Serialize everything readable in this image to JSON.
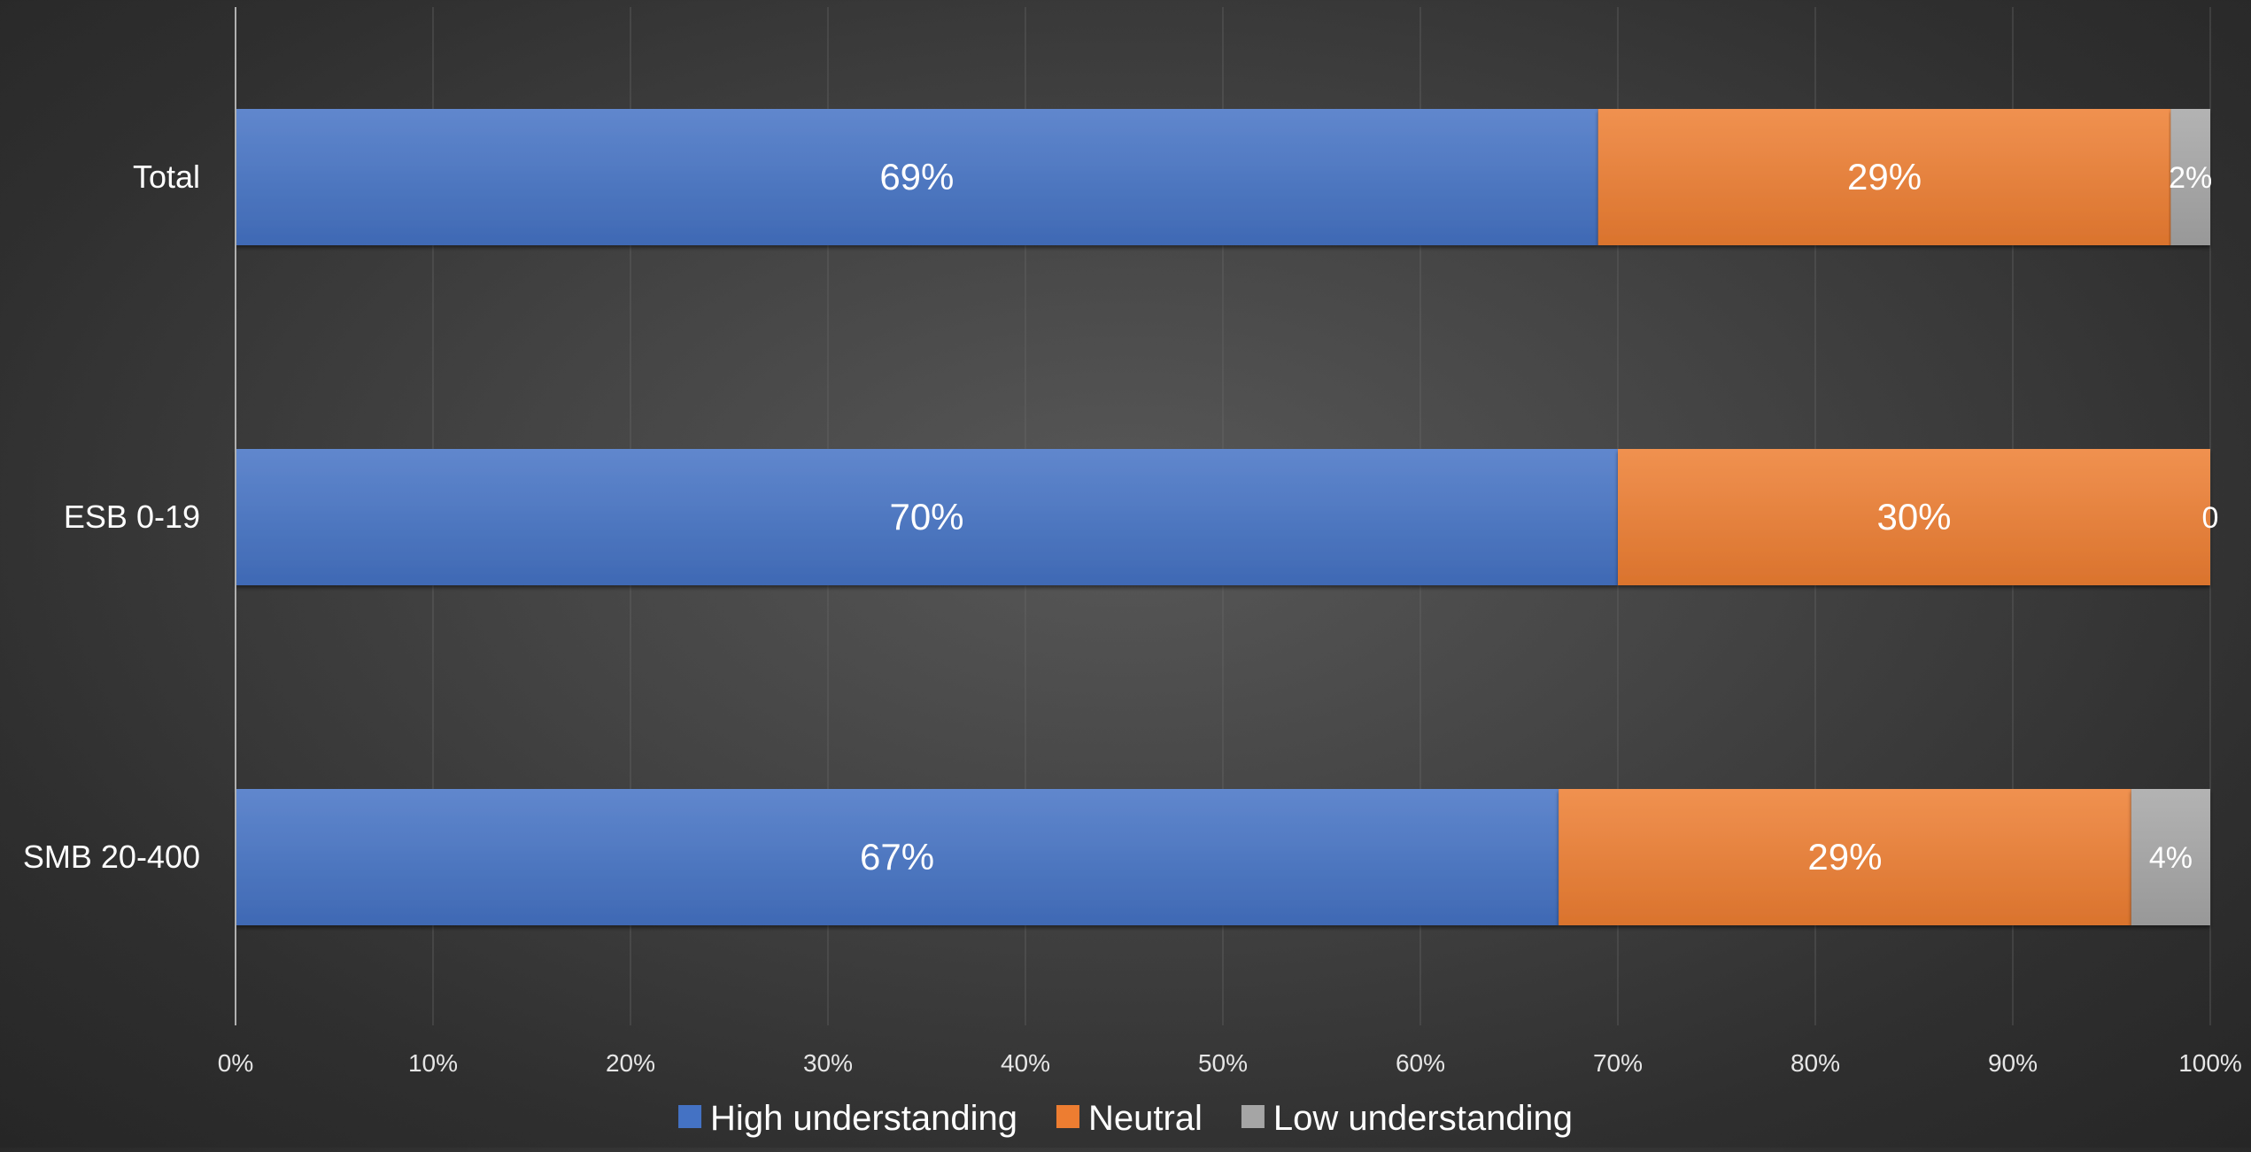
{
  "chart_data": {
    "type": "bar",
    "orientation": "horizontal",
    "stacked": true,
    "categories": [
      "Total",
      "ESB 0-19",
      "SMB 20-400"
    ],
    "series": [
      {
        "name": "High understanding",
        "color": "#4472C4",
        "values": [
          69,
          70,
          67
        ],
        "labels": [
          "69%",
          "70%",
          "67%"
        ]
      },
      {
        "name": "Neutral",
        "color": "#ED7D31",
        "values": [
          29,
          30,
          29
        ],
        "labels": [
          "29%",
          "30%",
          "29%"
        ]
      },
      {
        "name": "Low understanding",
        "color": "#A5A5A5",
        "values": [
          2,
          0,
          4
        ],
        "labels": [
          "2%",
          "0",
          "4%"
        ]
      }
    ],
    "x_ticks": [
      "0%",
      "10%",
      "20%",
      "30%",
      "40%",
      "50%",
      "60%",
      "70%",
      "80%",
      "90%",
      "100%"
    ],
    "xlim": [
      0,
      100
    ],
    "grid": true,
    "legend": "bottom"
  }
}
